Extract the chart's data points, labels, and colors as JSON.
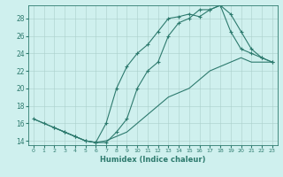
{
  "xlabel": "Humidex (Indice chaleur)",
  "bg_color": "#cff0ee",
  "line_color": "#2d7a6e",
  "xlim": [
    -0.5,
    23.5
  ],
  "ylim": [
    13.5,
    29.5
  ],
  "xticks": [
    0,
    1,
    2,
    3,
    4,
    5,
    6,
    7,
    8,
    9,
    10,
    11,
    12,
    13,
    14,
    15,
    16,
    17,
    18,
    19,
    20,
    21,
    22,
    23
  ],
  "yticks": [
    14,
    16,
    18,
    20,
    22,
    24,
    26,
    28
  ],
  "line1_x": [
    0,
    1,
    2,
    3,
    4,
    5,
    6,
    7,
    8,
    9,
    10,
    11,
    12,
    13,
    14,
    15,
    16,
    17,
    18,
    19,
    20,
    21,
    22,
    23
  ],
  "line1_y": [
    16.5,
    16,
    15.5,
    15,
    14.5,
    14,
    13.8,
    14,
    14.5,
    15,
    16,
    17,
    18,
    19,
    19.5,
    20,
    21,
    22,
    22.5,
    23,
    23.5,
    23,
    23,
    23
  ],
  "line2_x": [
    0,
    1,
    2,
    3,
    4,
    5,
    6,
    7,
    8,
    9,
    10,
    11,
    12,
    13,
    14,
    15,
    16,
    17,
    18,
    19,
    20,
    21,
    22,
    23
  ],
  "line2_y": [
    16.5,
    16,
    15.5,
    15,
    14.5,
    14,
    13.8,
    16,
    20,
    22.5,
    24,
    25,
    26.5,
    28,
    28.2,
    28.5,
    28.2,
    29,
    29.5,
    26.5,
    24.5,
    24,
    23.5,
    23
  ],
  "line3_x": [
    2,
    3,
    4,
    5,
    6,
    7,
    8,
    9,
    10,
    11,
    12,
    13,
    14,
    15,
    16,
    17,
    18,
    19,
    20,
    21,
    22,
    23
  ],
  "line3_y": [
    15.5,
    15,
    14.5,
    14,
    13.8,
    13.8,
    15,
    16.5,
    20,
    22,
    23,
    26,
    27.5,
    28,
    29,
    29,
    29.5,
    28.5,
    26.5,
    24.5,
    23.5,
    23
  ]
}
